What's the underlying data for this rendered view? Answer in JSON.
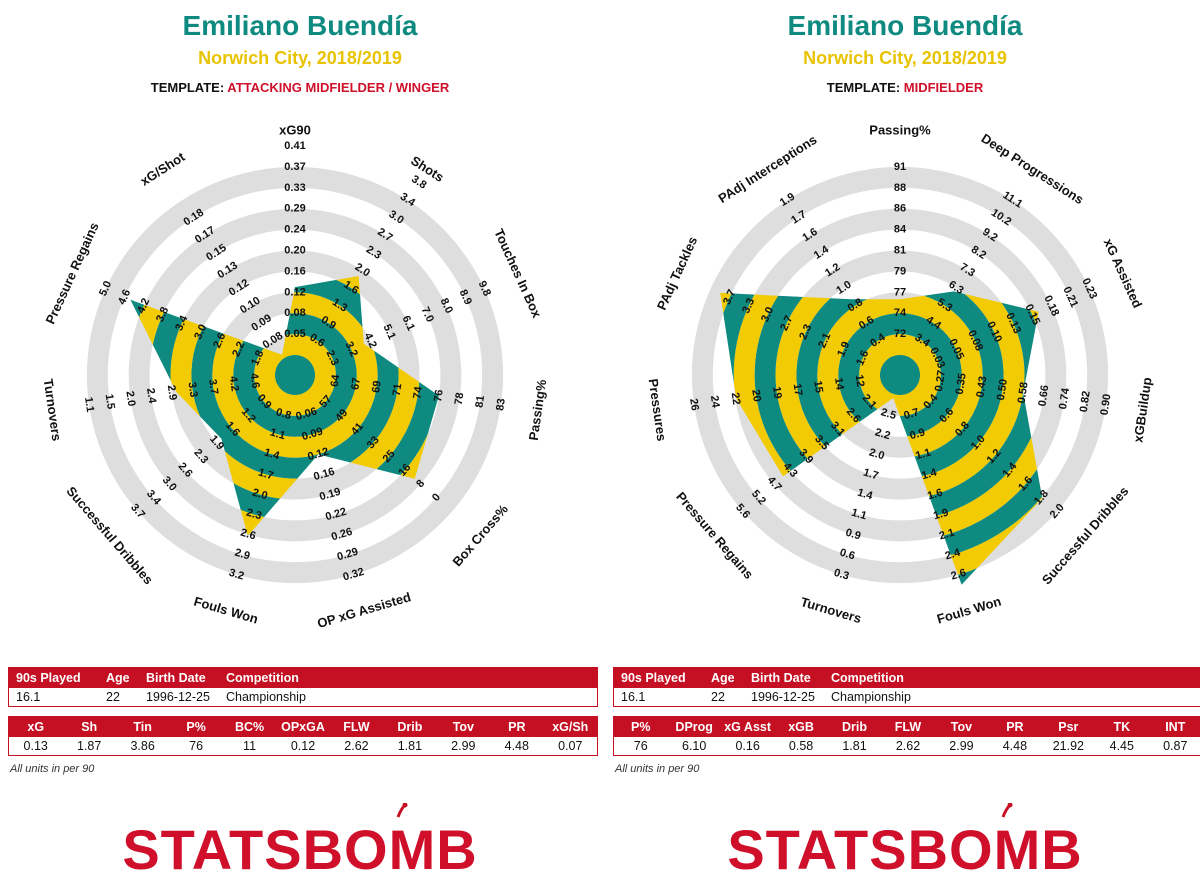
{
  "colors": {
    "teal": "#0e8a80",
    "gold": "#f2cb05",
    "ring": "#dedede",
    "red": "#c50f23",
    "template_red": "#d0102a"
  },
  "logo_text": "STATSBOMB",
  "panels": [
    {
      "title": "Emiliano Buendía",
      "subtitle": "Norwich City, 2018/2019",
      "template_label": "TEMPLATE: ",
      "template_value": "ATTACKING MIDFIELDER / WINGER",
      "info_table": {
        "headers": [
          "90s Played",
          "Age",
          "Birth Date",
          "Competition"
        ],
        "values": [
          "16.1",
          "22",
          "1996-12-25",
          "Championship"
        ]
      },
      "stats_table": {
        "headers": [
          "xG",
          "Sh",
          "Tin",
          "P%",
          "BC%",
          "OPxGA",
          "FLW",
          "Drib",
          "Tov",
          "PR",
          "xG/Sh"
        ],
        "values": [
          "0.13",
          "1.87",
          "3.86",
          "76",
          "11",
          "0.12",
          "2.62",
          "1.81",
          "2.99",
          "4.48",
          "0.07"
        ]
      },
      "note": "All units in per 90"
    },
    {
      "title": "Emiliano Buendía",
      "subtitle": "Norwich City, 2018/2019",
      "template_label": "TEMPLATE: ",
      "template_value": "MIDFIELDER",
      "info_table": {
        "headers": [
          "90s Played",
          "Age",
          "Birth Date",
          "Competition"
        ],
        "values": [
          "16.1",
          "22",
          "1996-12-25",
          "Championship"
        ]
      },
      "stats_table": {
        "headers": [
          "P%",
          "DProg",
          "xG Asst",
          "xGB",
          "Drib",
          "FLW",
          "Tov",
          "PR",
          "Psr",
          "TK",
          "INT"
        ],
        "values": [
          "76",
          "6.10",
          "0.16",
          "0.58",
          "1.81",
          "2.62",
          "2.99",
          "4.48",
          "21.92",
          "4.45",
          "0.87"
        ]
      },
      "note": "All units in per 90"
    }
  ],
  "chart_data": [
    {
      "type": "radar",
      "axes": [
        {
          "label": "xG90",
          "ticks": [
            "0.05",
            "0.08",
            "0.12",
            "0.16",
            "0.20",
            "0.24",
            "0.29",
            "0.33",
            "0.37",
            "0.41"
          ],
          "value": 0.13
        },
        {
          "label": "Shots",
          "ticks": [
            "0.6",
            "0.9",
            "1.3",
            "1.6",
            "2.0",
            "2.3",
            "2.7",
            "3.0",
            "3.4",
            "3.8"
          ],
          "value": 1.87
        },
        {
          "label": "Touches In Box",
          "ticks": [
            "2.3",
            "3.2",
            "4.2",
            "5.1",
            "6.1",
            "7.0",
            "8.0",
            "8.9",
            "9.8"
          ],
          "value": 3.86
        },
        {
          "label": "Passing%",
          "ticks": [
            "64",
            "67",
            "69",
            "71",
            "74",
            "76",
            "78",
            "81",
            "83"
          ],
          "value": 76
        },
        {
          "label": "Box Cross%",
          "ticks": [
            "57",
            "49",
            "41",
            "33",
            "25",
            "16",
            "8",
            "0"
          ],
          "value": 11
        },
        {
          "label": "OP xG Assisted",
          "ticks": [
            "0.06",
            "0.09",
            "0.12",
            "0.16",
            "0.19",
            "0.22",
            "0.26",
            "0.29",
            "0.32"
          ],
          "value": 0.12
        },
        {
          "label": "Fouls Won",
          "ticks": [
            "0.8",
            "1.1",
            "1.4",
            "1.7",
            "2.0",
            "2.3",
            "2.6",
            "2.9",
            "3.2"
          ],
          "value": 2.62
        },
        {
          "label": "Successful Dribbles",
          "ticks": [
            "0.9",
            "1.2",
            "1.6",
            "1.9",
            "2.3",
            "2.6",
            "3.0",
            "3.4",
            "3.7"
          ],
          "value": 1.81
        },
        {
          "label": "Turnovers",
          "ticks": [
            "4.6",
            "4.2",
            "3.7",
            "3.3",
            "2.9",
            "2.4",
            "2.0",
            "1.5",
            "1.1"
          ],
          "value": 2.99
        },
        {
          "label": "Pressure Regains",
          "ticks": [
            "1.8",
            "2.2",
            "2.6",
            "3.0",
            "3.4",
            "3.8",
            "4.2",
            "4.6",
            "5.0"
          ],
          "value": 4.48
        },
        {
          "label": "xG/Shot",
          "ticks": [
            "0.08",
            "0.09",
            "0.10",
            "0.12",
            "0.13",
            "0.15",
            "0.17",
            "0.18"
          ],
          "value": 0.07
        }
      ]
    },
    {
      "type": "radar",
      "axes": [
        {
          "label": "Passing%",
          "ticks": [
            "72",
            "74",
            "77",
            "79",
            "81",
            "84",
            "86",
            "88",
            "91"
          ],
          "value": 76
        },
        {
          "label": "Deep Progressions",
          "ticks": [
            "3.4",
            "4.4",
            "5.3",
            "6.3",
            "7.3",
            "8.2",
            "9.2",
            "10.2",
            "11.1"
          ],
          "value": 6.1
        },
        {
          "label": "xG Assisted",
          "ticks": [
            "0.03",
            "0.05",
            "0.08",
            "0.10",
            "0.13",
            "0.15",
            "0.18",
            "0.21",
            "0.23"
          ],
          "value": 0.16
        },
        {
          "label": "xGBuildup",
          "ticks": [
            "0.27",
            "0.35",
            "0.43",
            "0.50",
            "0.58",
            "0.66",
            "0.74",
            "0.82",
            "0.90"
          ],
          "value": 0.58
        },
        {
          "label": "Successful Dribbles",
          "ticks": [
            "0.4",
            "0.6",
            "0.8",
            "1.0",
            "1.2",
            "1.4",
            "1.6",
            "1.8",
            "2.0"
          ],
          "value": 1.81
        },
        {
          "label": "Fouls Won",
          "ticks": [
            "0.7",
            "0.9",
            "1.1",
            "1.4",
            "1.6",
            "1.9",
            "2.1",
            "2.4",
            "2.6"
          ],
          "value": 2.62
        },
        {
          "label": "Turnovers",
          "ticks": [
            "2.5",
            "2.2",
            "2.0",
            "1.7",
            "1.4",
            "1.1",
            "0.9",
            "0.6",
            "0.3"
          ],
          "value": 2.99
        },
        {
          "label": "Pressure Regains",
          "ticks": [
            "2.1",
            "2.6",
            "3.1",
            "3.5",
            "3.9",
            "4.3",
            "4.7",
            "5.2",
            "5.6"
          ],
          "value": 4.48
        },
        {
          "label": "Pressures",
          "ticks": [
            "12",
            "14",
            "15",
            "17",
            "19",
            "20",
            "22",
            "24",
            "26"
          ],
          "value": 21.92
        },
        {
          "label": "PAdj Tackles",
          "ticks": [
            "1.6",
            "1.9",
            "2.1",
            "2.3",
            "2.7",
            "3.0",
            "3.3",
            "3.7"
          ],
          "value": 4.45
        },
        {
          "label": "PAdj Interceptions",
          "ticks": [
            "0.4",
            "0.6",
            "0.8",
            "1.0",
            "1.2",
            "1.4",
            "1.6",
            "1.7",
            "1.9"
          ],
          "value": 0.87
        }
      ]
    }
  ]
}
